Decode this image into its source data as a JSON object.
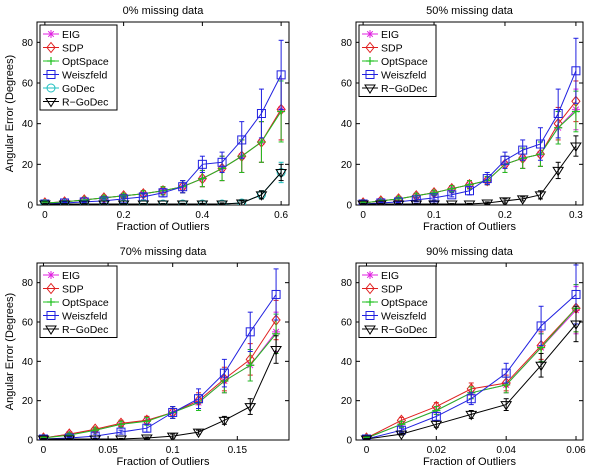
{
  "figure": {
    "background": "#ffffff"
  },
  "chart_data": [
    {
      "type": "line",
      "title": "0% missing data",
      "xlabel": "Fraction of Outliers",
      "ylabel": "Angular Error (Degrees)",
      "xlim": [
        -0.02,
        0.62
      ],
      "ylim": [
        0,
        90
      ],
      "xticks": [
        0,
        0.2,
        0.4,
        0.6
      ],
      "xticklabels": [
        "0",
        "0.2",
        "0.4",
        "0.6"
      ],
      "yticks": [
        0,
        20,
        40,
        60,
        80
      ],
      "yticklabels": [
        "0",
        "20",
        "40",
        "60",
        "80"
      ],
      "legend_position": "top-left",
      "grid": false,
      "x": [
        0,
        0.05,
        0.1,
        0.15,
        0.2,
        0.25,
        0.3,
        0.35,
        0.4,
        0.45,
        0.5,
        0.55,
        0.6
      ],
      "series": [
        {
          "name": "EIG",
          "color": "#e020e0",
          "marker": "star",
          "values": [
            1,
            1.5,
            2.5,
            3.5,
            4.5,
            5.5,
            7,
            9,
            13,
            18,
            24,
            31,
            47
          ],
          "errors": [
            0.5,
            0.5,
            1,
            1,
            1,
            1.5,
            2,
            3,
            4,
            6,
            8,
            10,
            15
          ]
        },
        {
          "name": "SDP",
          "color": "#e02020",
          "marker": "diamond",
          "values": [
            1,
            1.5,
            2.5,
            3.5,
            4.5,
            5.5,
            7,
            9,
            13,
            18,
            24,
            31,
            47
          ],
          "errors": [
            0.5,
            0.5,
            1,
            1,
            1,
            1.5,
            2,
            3,
            4,
            6,
            8,
            10,
            15
          ]
        },
        {
          "name": "OptSpace",
          "color": "#20c020",
          "marker": "plus",
          "values": [
            1,
            1.5,
            2.5,
            3.5,
            4.5,
            5.5,
            7,
            9,
            13,
            18,
            24,
            31,
            46
          ],
          "errors": [
            0.5,
            0.5,
            1,
            1,
            1,
            1.5,
            2,
            3,
            4,
            6,
            8,
            10,
            15
          ]
        },
        {
          "name": "Weiszfeld",
          "color": "#2020e0",
          "marker": "square",
          "values": [
            0.5,
            1,
            1.5,
            2,
            3,
            4,
            6,
            9,
            20,
            21,
            32,
            45,
            64
          ],
          "errors": [
            0.3,
            0.5,
            0.5,
            1,
            1,
            1.5,
            2,
            3,
            4,
            5,
            9,
            12,
            17
          ]
        },
        {
          "name": "GoDec",
          "color": "#20c0c0",
          "marker": "circle",
          "values": [
            0.5,
            0.5,
            0.5,
            0.5,
            0.5,
            0.5,
            0.5,
            0.5,
            0.5,
            0.5,
            1,
            5,
            16
          ],
          "errors": [
            0.2,
            0.2,
            0.2,
            0.2,
            0.2,
            0.2,
            0.2,
            0.3,
            0.3,
            0.5,
            1,
            2,
            5
          ]
        },
        {
          "name": "R−GoDec",
          "color": "#000000",
          "marker": "triangle-down",
          "values": [
            0.5,
            0.5,
            0.5,
            0.5,
            0.5,
            0.5,
            0.5,
            0.5,
            0.5,
            0.5,
            1,
            5,
            16
          ],
          "errors": [
            0.2,
            0.2,
            0.2,
            0.2,
            0.2,
            0.2,
            0.2,
            0.3,
            0.3,
            0.5,
            1,
            2,
            4
          ]
        }
      ]
    },
    {
      "type": "line",
      "title": "50% missing data",
      "xlabel": "Fraction of Outliers",
      "ylabel": "",
      "xlim": [
        -0.01,
        0.31
      ],
      "ylim": [
        0,
        90
      ],
      "xticks": [
        0,
        0.1,
        0.2,
        0.3
      ],
      "xticklabels": [
        "0",
        "0.1",
        "0.2",
        "0.3"
      ],
      "yticks": [
        0,
        20,
        40,
        60,
        80
      ],
      "yticklabels": [
        "0",
        "20",
        "40",
        "60",
        "80"
      ],
      "legend_position": "top-left",
      "grid": false,
      "x": [
        0,
        0.025,
        0.05,
        0.075,
        0.1,
        0.125,
        0.15,
        0.175,
        0.2,
        0.225,
        0.25,
        0.275,
        0.3
      ],
      "series": [
        {
          "name": "EIG",
          "color": "#e020e0",
          "marker": "star",
          "values": [
            1,
            2,
            3,
            4.5,
            6,
            8,
            10,
            12,
            20,
            23,
            25,
            38,
            47
          ],
          "errors": [
            0.5,
            0.5,
            1,
            1,
            1,
            1.5,
            2,
            2,
            4,
            5,
            6,
            8,
            10
          ]
        },
        {
          "name": "SDP",
          "color": "#e02020",
          "marker": "diamond",
          "values": [
            1,
            2,
            3,
            4.5,
            6,
            8,
            10,
            12,
            20,
            23,
            25,
            40,
            51
          ],
          "errors": [
            0.5,
            0.5,
            1,
            1,
            1,
            1.5,
            2,
            2,
            4,
            5,
            6,
            8,
            10
          ]
        },
        {
          "name": "OptSpace",
          "color": "#20c020",
          "marker": "plus",
          "values": [
            1,
            2,
            3,
            4.5,
            6,
            8,
            10,
            12,
            20,
            23,
            25,
            38,
            46
          ],
          "errors": [
            0.5,
            0.5,
            1,
            1,
            1,
            1.5,
            2,
            2,
            4,
            5,
            6,
            8,
            10
          ]
        },
        {
          "name": "Weiszfeld",
          "color": "#2020e0",
          "marker": "square",
          "values": [
            0.5,
            1,
            1.5,
            2.5,
            3.5,
            5,
            7,
            13,
            22,
            27,
            30,
            45,
            66
          ],
          "errors": [
            0.3,
            0.5,
            0.5,
            1,
            1,
            1,
            2,
            3,
            4,
            5,
            8,
            12,
            16
          ]
        },
        {
          "name": "R−GoDec",
          "color": "#000000",
          "marker": "triangle-down",
          "values": [
            0.5,
            0.5,
            0.5,
            0.5,
            0.5,
            0.5,
            0.5,
            1,
            2,
            3,
            5,
            17,
            29
          ],
          "errors": [
            0.2,
            0.2,
            0.2,
            0.2,
            0.2,
            0.2,
            0.3,
            0.5,
            1,
            1,
            2,
            4,
            5
          ]
        }
      ]
    },
    {
      "type": "line",
      "title": "70% missing data",
      "xlabel": "Fraction of Outliers",
      "ylabel": "Angular Error (Degrees)",
      "xlim": [
        -0.005,
        0.19
      ],
      "ylim": [
        0,
        90
      ],
      "xticks": [
        0,
        0.05,
        0.1,
        0.15
      ],
      "xticklabels": [
        "0",
        "0.05",
        "0.1",
        "0.15"
      ],
      "yticks": [
        0,
        20,
        40,
        60,
        80
      ],
      "yticklabels": [
        "0",
        "20",
        "40",
        "60",
        "80"
      ],
      "legend_position": "top-left",
      "grid": false,
      "x": [
        0,
        0.02,
        0.04,
        0.06,
        0.08,
        0.1,
        0.12,
        0.14,
        0.16,
        0.18
      ],
      "series": [
        {
          "name": "EIG",
          "color": "#e020e0",
          "marker": "star",
          "values": [
            1,
            3,
            5,
            8,
            10,
            14,
            19,
            30,
            38,
            55
          ],
          "errors": [
            0.5,
            1,
            1,
            1.5,
            2,
            3,
            4,
            6,
            8,
            10
          ]
        },
        {
          "name": "SDP",
          "color": "#e02020",
          "marker": "diamond",
          "values": [
            1,
            3,
            5.5,
            8.5,
            10,
            14,
            20,
            31,
            41,
            61
          ],
          "errors": [
            0.5,
            1,
            1,
            1.5,
            2,
            3,
            4,
            6,
            8,
            10
          ]
        },
        {
          "name": "OptSpace",
          "color": "#20c020",
          "marker": "plus",
          "values": [
            1,
            2.5,
            5,
            8,
            9.5,
            14,
            19,
            30,
            38,
            54
          ],
          "errors": [
            0.5,
            1,
            1,
            1.5,
            2,
            3,
            4,
            6,
            8,
            10
          ]
        },
        {
          "name": "Weiszfeld",
          "color": "#2020e0",
          "marker": "square",
          "values": [
            0.5,
            1,
            2,
            4,
            6,
            14,
            21,
            34,
            55,
            74
          ],
          "errors": [
            0.3,
            0.5,
            1,
            1,
            2,
            3,
            5,
            7,
            10,
            13
          ]
        },
        {
          "name": "R−GoDec",
          "color": "#000000",
          "marker": "triangle-down",
          "values": [
            0.5,
            0.5,
            0.5,
            0.5,
            1,
            2,
            4,
            10,
            17,
            46
          ],
          "errors": [
            0.2,
            0.2,
            0.2,
            0.3,
            0.5,
            1,
            1,
            2,
            4,
            7
          ]
        }
      ]
    },
    {
      "type": "line",
      "title": "90% missing data",
      "xlabel": "Fraction of Outliers",
      "ylabel": "",
      "xlim": [
        -0.003,
        0.062
      ],
      "ylim": [
        0,
        90
      ],
      "xticks": [
        0,
        0.02,
        0.04,
        0.06
      ],
      "xticklabels": [
        "0",
        "0.02",
        "0.04",
        "0.06"
      ],
      "yticks": [
        0,
        20,
        40,
        60,
        80
      ],
      "yticklabels": [
        "0",
        "20",
        "40",
        "60",
        "80"
      ],
      "legend_position": "top-left",
      "grid": false,
      "x": [
        0,
        0.01,
        0.02,
        0.03,
        0.04,
        0.05,
        0.06
      ],
      "series": [
        {
          "name": "EIG",
          "color": "#e020e0",
          "marker": "star",
          "values": [
            1,
            8,
            15,
            24,
            28,
            47,
            66
          ],
          "errors": [
            0.5,
            1.5,
            2,
            3,
            4,
            7,
            12
          ]
        },
        {
          "name": "SDP",
          "color": "#e02020",
          "marker": "diamond",
          "values": [
            1,
            10,
            17,
            26,
            29,
            48,
            67
          ],
          "errors": [
            0.5,
            1.5,
            2,
            3,
            4,
            7,
            12
          ]
        },
        {
          "name": "OptSpace",
          "color": "#20c020",
          "marker": "plus",
          "values": [
            1,
            8,
            15,
            24,
            28,
            47,
            67
          ],
          "errors": [
            0.5,
            1.5,
            2,
            3,
            4,
            7,
            12
          ]
        },
        {
          "name": "Weiszfeld",
          "color": "#2020e0",
          "marker": "square",
          "values": [
            0.5,
            5,
            12,
            21,
            34,
            58,
            74
          ],
          "errors": [
            0.3,
            1,
            2,
            3,
            5,
            10,
            15
          ]
        },
        {
          "name": "R−GoDec",
          "color": "#000000",
          "marker": "triangle-down",
          "values": [
            0.5,
            3,
            8,
            13,
            18,
            38,
            59
          ],
          "errors": [
            0.2,
            0.5,
            1.5,
            2,
            3,
            6,
            9
          ]
        }
      ]
    }
  ]
}
